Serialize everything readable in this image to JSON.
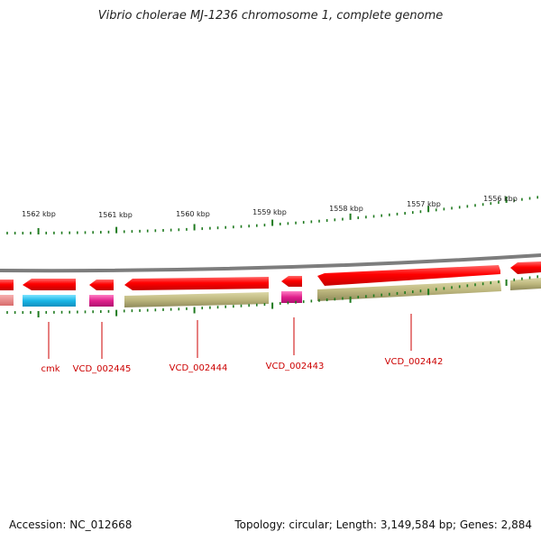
{
  "title": "Vibrio cholerae MJ-1236 chromosome 1, complete genome",
  "scale_labels": [
    "1562 kbp",
    "1561 kbp",
    "1560 kbp",
    "1559 kbp",
    "1558 kbp",
    "1557 kbp",
    "1556 kbp"
  ],
  "gene_labels": [
    "cmk",
    "VCD_002445",
    "VCD_002444",
    "VCD_002443",
    "VCD_002442"
  ],
  "footer": {
    "accession": "Accession: NC_012668",
    "summary": "Topology: circular; Length: 3,149,584 bp; Genes: 2,884"
  },
  "colors": {
    "forward_gene": "#ee0000",
    "cmk_cog": "#19b6e6",
    "pink_cog": "#e0208c",
    "olive_cog": "#b9b37a",
    "tick": "#1f7a1f",
    "backbone": "#808080",
    "label": "#cc0000"
  }
}
